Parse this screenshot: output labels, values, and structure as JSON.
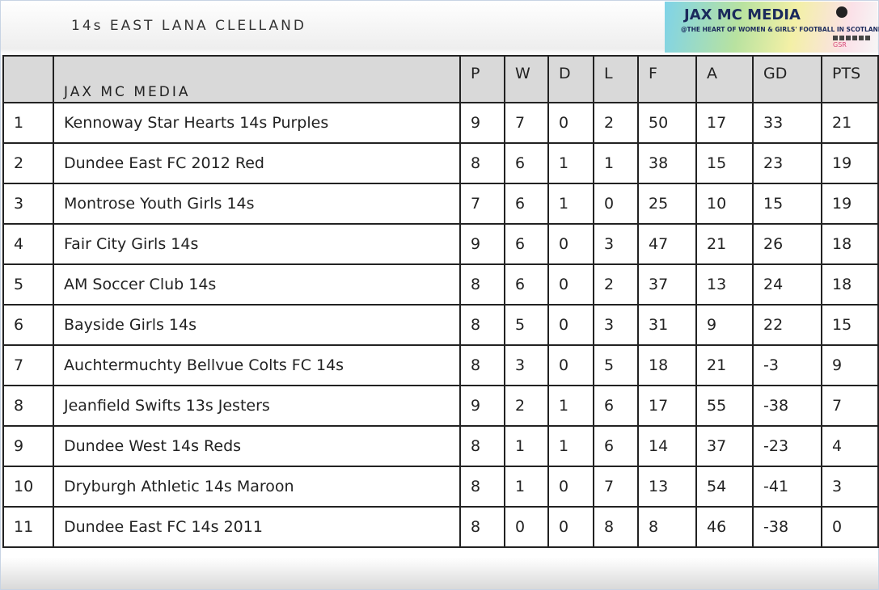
{
  "header": {
    "title": "14s EAST LANA CLELLAND"
  },
  "logo": {
    "title": "JAX MC MEDIA",
    "tagline": "@THE HEART OF WOMEN & GIRLS' FOOTBALL IN SCOTLAND",
    "mark": "GSR"
  },
  "table": {
    "columns": [
      "",
      "JAX MC MEDIA",
      "P",
      "W",
      "D",
      "L",
      "F",
      "A",
      "GD",
      "PTS"
    ],
    "rows": [
      [
        1,
        "Kennoway Star Hearts 14s Purples",
        9,
        7,
        0,
        2,
        50,
        17,
        33,
        21
      ],
      [
        2,
        "Dundee East FC 2012 Red",
        8,
        6,
        1,
        1,
        38,
        15,
        23,
        19
      ],
      [
        3,
        "Montrose Youth Girls 14s",
        7,
        6,
        1,
        0,
        25,
        10,
        15,
        19
      ],
      [
        4,
        "Fair City Girls 14s",
        9,
        6,
        0,
        3,
        47,
        21,
        26,
        18
      ],
      [
        5,
        "AM Soccer Club 14s",
        8,
        6,
        0,
        2,
        37,
        13,
        24,
        18
      ],
      [
        6,
        "Bayside Girls 14s",
        8,
        5,
        0,
        3,
        31,
        9,
        22,
        15
      ],
      [
        7,
        "Auchtermuchty Bellvue Colts FC 14s",
        8,
        3,
        0,
        5,
        18,
        21,
        -3,
        9
      ],
      [
        8,
        "Jeanfield Swifts 13s Jesters",
        9,
        2,
        1,
        6,
        17,
        55,
        -38,
        7
      ],
      [
        9,
        "Dundee West 14s Reds",
        8,
        1,
        1,
        6,
        14,
        37,
        -23,
        4
      ],
      [
        10,
        "Dryburgh Athletic 14s Maroon",
        8,
        1,
        0,
        7,
        13,
        54,
        -41,
        3
      ],
      [
        11,
        "Dundee East FC 14s 2011",
        8,
        0,
        0,
        8,
        8,
        46,
        -38,
        0
      ]
    ]
  }
}
